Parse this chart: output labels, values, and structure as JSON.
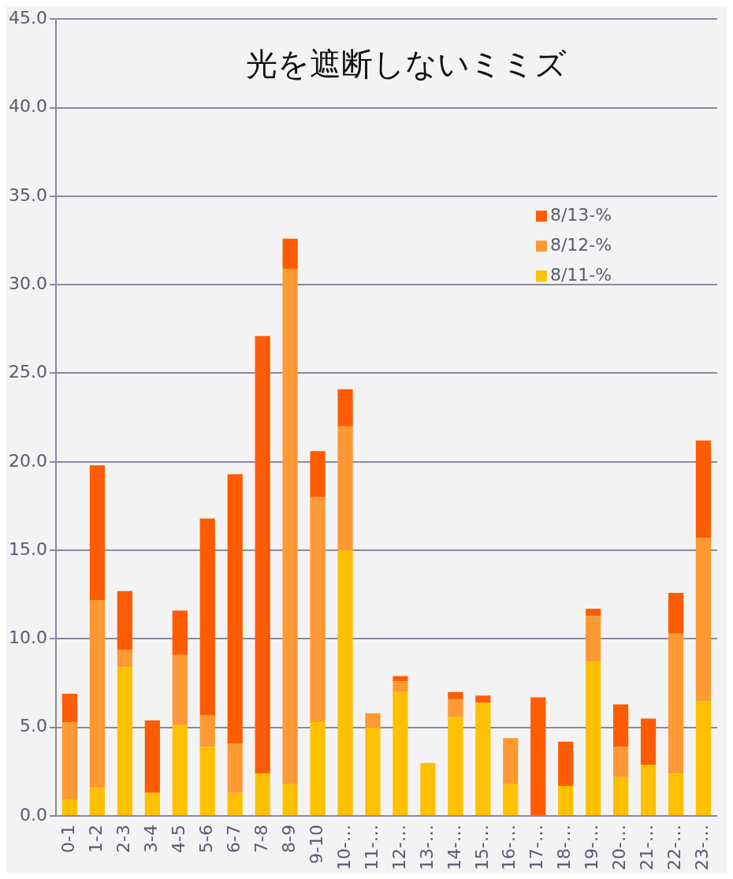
{
  "chart_data": {
    "type": "bar",
    "title": "光を遮断しないミミズ",
    "stacked": true,
    "categories": [
      "0-1",
      "1-2",
      "2-3",
      "3-4",
      "4-5",
      "5-6",
      "6-7",
      "7-8",
      "8-9",
      "9-10",
      "10-…",
      "11-…",
      "12-…",
      "13-…",
      "14-…",
      "15-…",
      "16-…",
      "17-…",
      "18-…",
      "19-…",
      "20-…",
      "21-…",
      "22-…",
      "23-…"
    ],
    "series": [
      {
        "name": "8/11-%",
        "color": "#ffc000",
        "values": [
          0.9,
          1.6,
          8.4,
          1.3,
          5.1,
          3.9,
          1.3,
          2.4,
          1.8,
          5.3,
          15.0,
          5.0,
          7.0,
          3.0,
          5.6,
          6.4,
          1.8,
          0,
          1.7,
          8.7,
          2.2,
          2.9,
          2.4,
          6.5
        ]
      },
      {
        "name": "8/12-%",
        "color": "#ff9933",
        "values": [
          4.4,
          10.6,
          1.0,
          0,
          4.0,
          1.8,
          2.8,
          0,
          29.1,
          12.7,
          7.0,
          0.8,
          0.6,
          0,
          1.0,
          0,
          2.6,
          0,
          0,
          2.6,
          1.7,
          0,
          7.9,
          9.2
        ]
      },
      {
        "name": "8/13-%",
        "color": "#ff5c00",
        "values": [
          1.6,
          7.6,
          3.3,
          4.1,
          2.5,
          11.1,
          15.2,
          24.7,
          1.7,
          2.6,
          2.1,
          0,
          0.3,
          0,
          0.4,
          0.4,
          0,
          6.7,
          2.5,
          0.4,
          2.4,
          2.6,
          2.3,
          5.5
        ]
      }
    ],
    "ylim": [
      0,
      45
    ],
    "yticks": [
      {
        "value": 0,
        "label": "0.0"
      },
      {
        "value": 5,
        "label": "5.0"
      },
      {
        "value": 10,
        "label": "10.0"
      },
      {
        "value": 15,
        "label": "15.0"
      },
      {
        "value": 20,
        "label": "20.0"
      },
      {
        "value": 25,
        "label": "25.0"
      },
      {
        "value": 30,
        "label": "30.0"
      },
      {
        "value": 35,
        "label": "35.0"
      },
      {
        "value": 40,
        "label": "40.0"
      },
      {
        "value": 45,
        "label": "45.0"
      }
    ],
    "grid": "y",
    "legend": "top right"
  }
}
